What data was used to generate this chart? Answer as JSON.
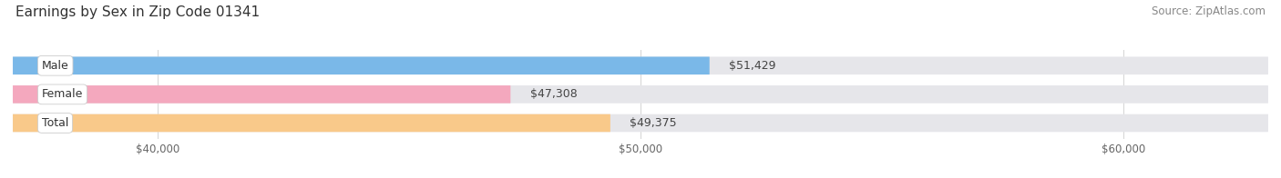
{
  "title": "Earnings by Sex in Zip Code 01341",
  "source": "Source: ZipAtlas.com",
  "categories": [
    "Male",
    "Female",
    "Total"
  ],
  "values": [
    51429,
    47308,
    49375
  ],
  "bar_colors": [
    "#7ab8e8",
    "#f4a8be",
    "#f9c98a"
  ],
  "bar_bg_color": "#e6e6ea",
  "value_labels": [
    "$51,429",
    "$47,308",
    "$49,375"
  ],
  "xmin": 37000,
  "xmax": 63000,
  "xticks": [
    40000,
    50000,
    60000
  ],
  "xtick_labels": [
    "$40,000",
    "$50,000",
    "$60,000"
  ],
  "title_fontsize": 11,
  "source_fontsize": 8.5,
  "bar_label_fontsize": 9,
  "value_label_fontsize": 9,
  "axis_fontsize": 8.5,
  "background_color": "#ffffff",
  "bar_height": 0.62,
  "grid_color": "#d8d8d8"
}
